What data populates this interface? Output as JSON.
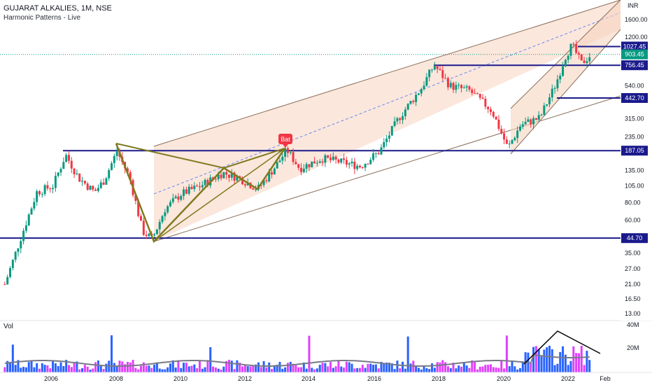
{
  "header": {
    "symbol": "GUJARAT ALKALIES, 1M, NSE",
    "indicator": "Harmonic Patterns - Live"
  },
  "volume_panel": {
    "label": "Vol",
    "ticks": [
      "40M",
      "20M"
    ]
  },
  "price_axis": {
    "currency": "INR",
    "ticks": [
      1600,
      1200,
      540,
      315,
      235,
      135,
      105,
      80,
      60,
      35,
      27,
      21,
      16.5,
      13
    ]
  },
  "time_axis": {
    "ticks": [
      "2006",
      "2008",
      "2010",
      "2012",
      "2014",
      "2016",
      "2018",
      "2020",
      "2022",
      "Feb"
    ]
  },
  "pattern_label": "Bat",
  "colors": {
    "up": "#089981",
    "down": "#f23645",
    "level_line": "#1a1a8c",
    "channel_fill": "#f7d4c0",
    "pattern": "#7f7a1e",
    "current_price": "#089981",
    "vol_blue": "#2962ff",
    "vol_magenta": "#e040fb",
    "vol_ma": "#787b86"
  },
  "chart_data": {
    "type": "candlestick",
    "title": "GUJARAT ALKALIES, 1M, NSE",
    "scale": "log",
    "ylim": [
      12,
      2200
    ],
    "levels": [
      {
        "label": "1027.45",
        "value": 1027.45
      },
      {
        "label": "756.45",
        "value": 756.45
      },
      {
        "label": "442.70",
        "value": 442.7
      },
      {
        "label": "187.05",
        "value": 187.05
      },
      {
        "label": "44.70",
        "value": 44.7
      }
    ],
    "current_price": {
      "label": "903.45",
      "value": 903.45
    },
    "series": [
      {
        "name": "price",
        "points": [
          {
            "year": 2004.5,
            "price": 21
          },
          {
            "year": 2005.0,
            "price": 45
          },
          {
            "year": 2005.5,
            "price": 95
          },
          {
            "year": 2006.0,
            "price": 105
          },
          {
            "year": 2006.4,
            "price": 175
          },
          {
            "year": 2006.8,
            "price": 120
          },
          {
            "year": 2007.3,
            "price": 95
          },
          {
            "year": 2007.6,
            "price": 115
          },
          {
            "year": 2008.0,
            "price": 185
          },
          {
            "year": 2008.4,
            "price": 120
          },
          {
            "year": 2008.8,
            "price": 50
          },
          {
            "year": 2009.1,
            "price": 44
          },
          {
            "year": 2009.5,
            "price": 72
          },
          {
            "year": 2010.0,
            "price": 92
          },
          {
            "year": 2010.6,
            "price": 105
          },
          {
            "year": 2011.3,
            "price": 130
          },
          {
            "year": 2011.8,
            "price": 120
          },
          {
            "year": 2012.4,
            "price": 100
          },
          {
            "year": 2013.0,
            "price": 150
          },
          {
            "year": 2013.3,
            "price": 190
          },
          {
            "year": 2013.7,
            "price": 140
          },
          {
            "year": 2014.4,
            "price": 165
          },
          {
            "year": 2015.0,
            "price": 155
          },
          {
            "year": 2015.6,
            "price": 145
          },
          {
            "year": 2016.2,
            "price": 185
          },
          {
            "year": 2016.8,
            "price": 320
          },
          {
            "year": 2017.5,
            "price": 520
          },
          {
            "year": 2017.9,
            "price": 760
          },
          {
            "year": 2018.4,
            "price": 540
          },
          {
            "year": 2019.0,
            "price": 500
          },
          {
            "year": 2019.7,
            "price": 360
          },
          {
            "year": 2020.2,
            "price": 195
          },
          {
            "year": 2020.6,
            "price": 285
          },
          {
            "year": 2021.2,
            "price": 320
          },
          {
            "year": 2021.7,
            "price": 560
          },
          {
            "year": 2022.0,
            "price": 880
          },
          {
            "year": 2022.2,
            "price": 1050
          },
          {
            "year": 2022.5,
            "price": 780
          },
          {
            "year": 2022.8,
            "price": 903
          }
        ]
      }
    ]
  }
}
